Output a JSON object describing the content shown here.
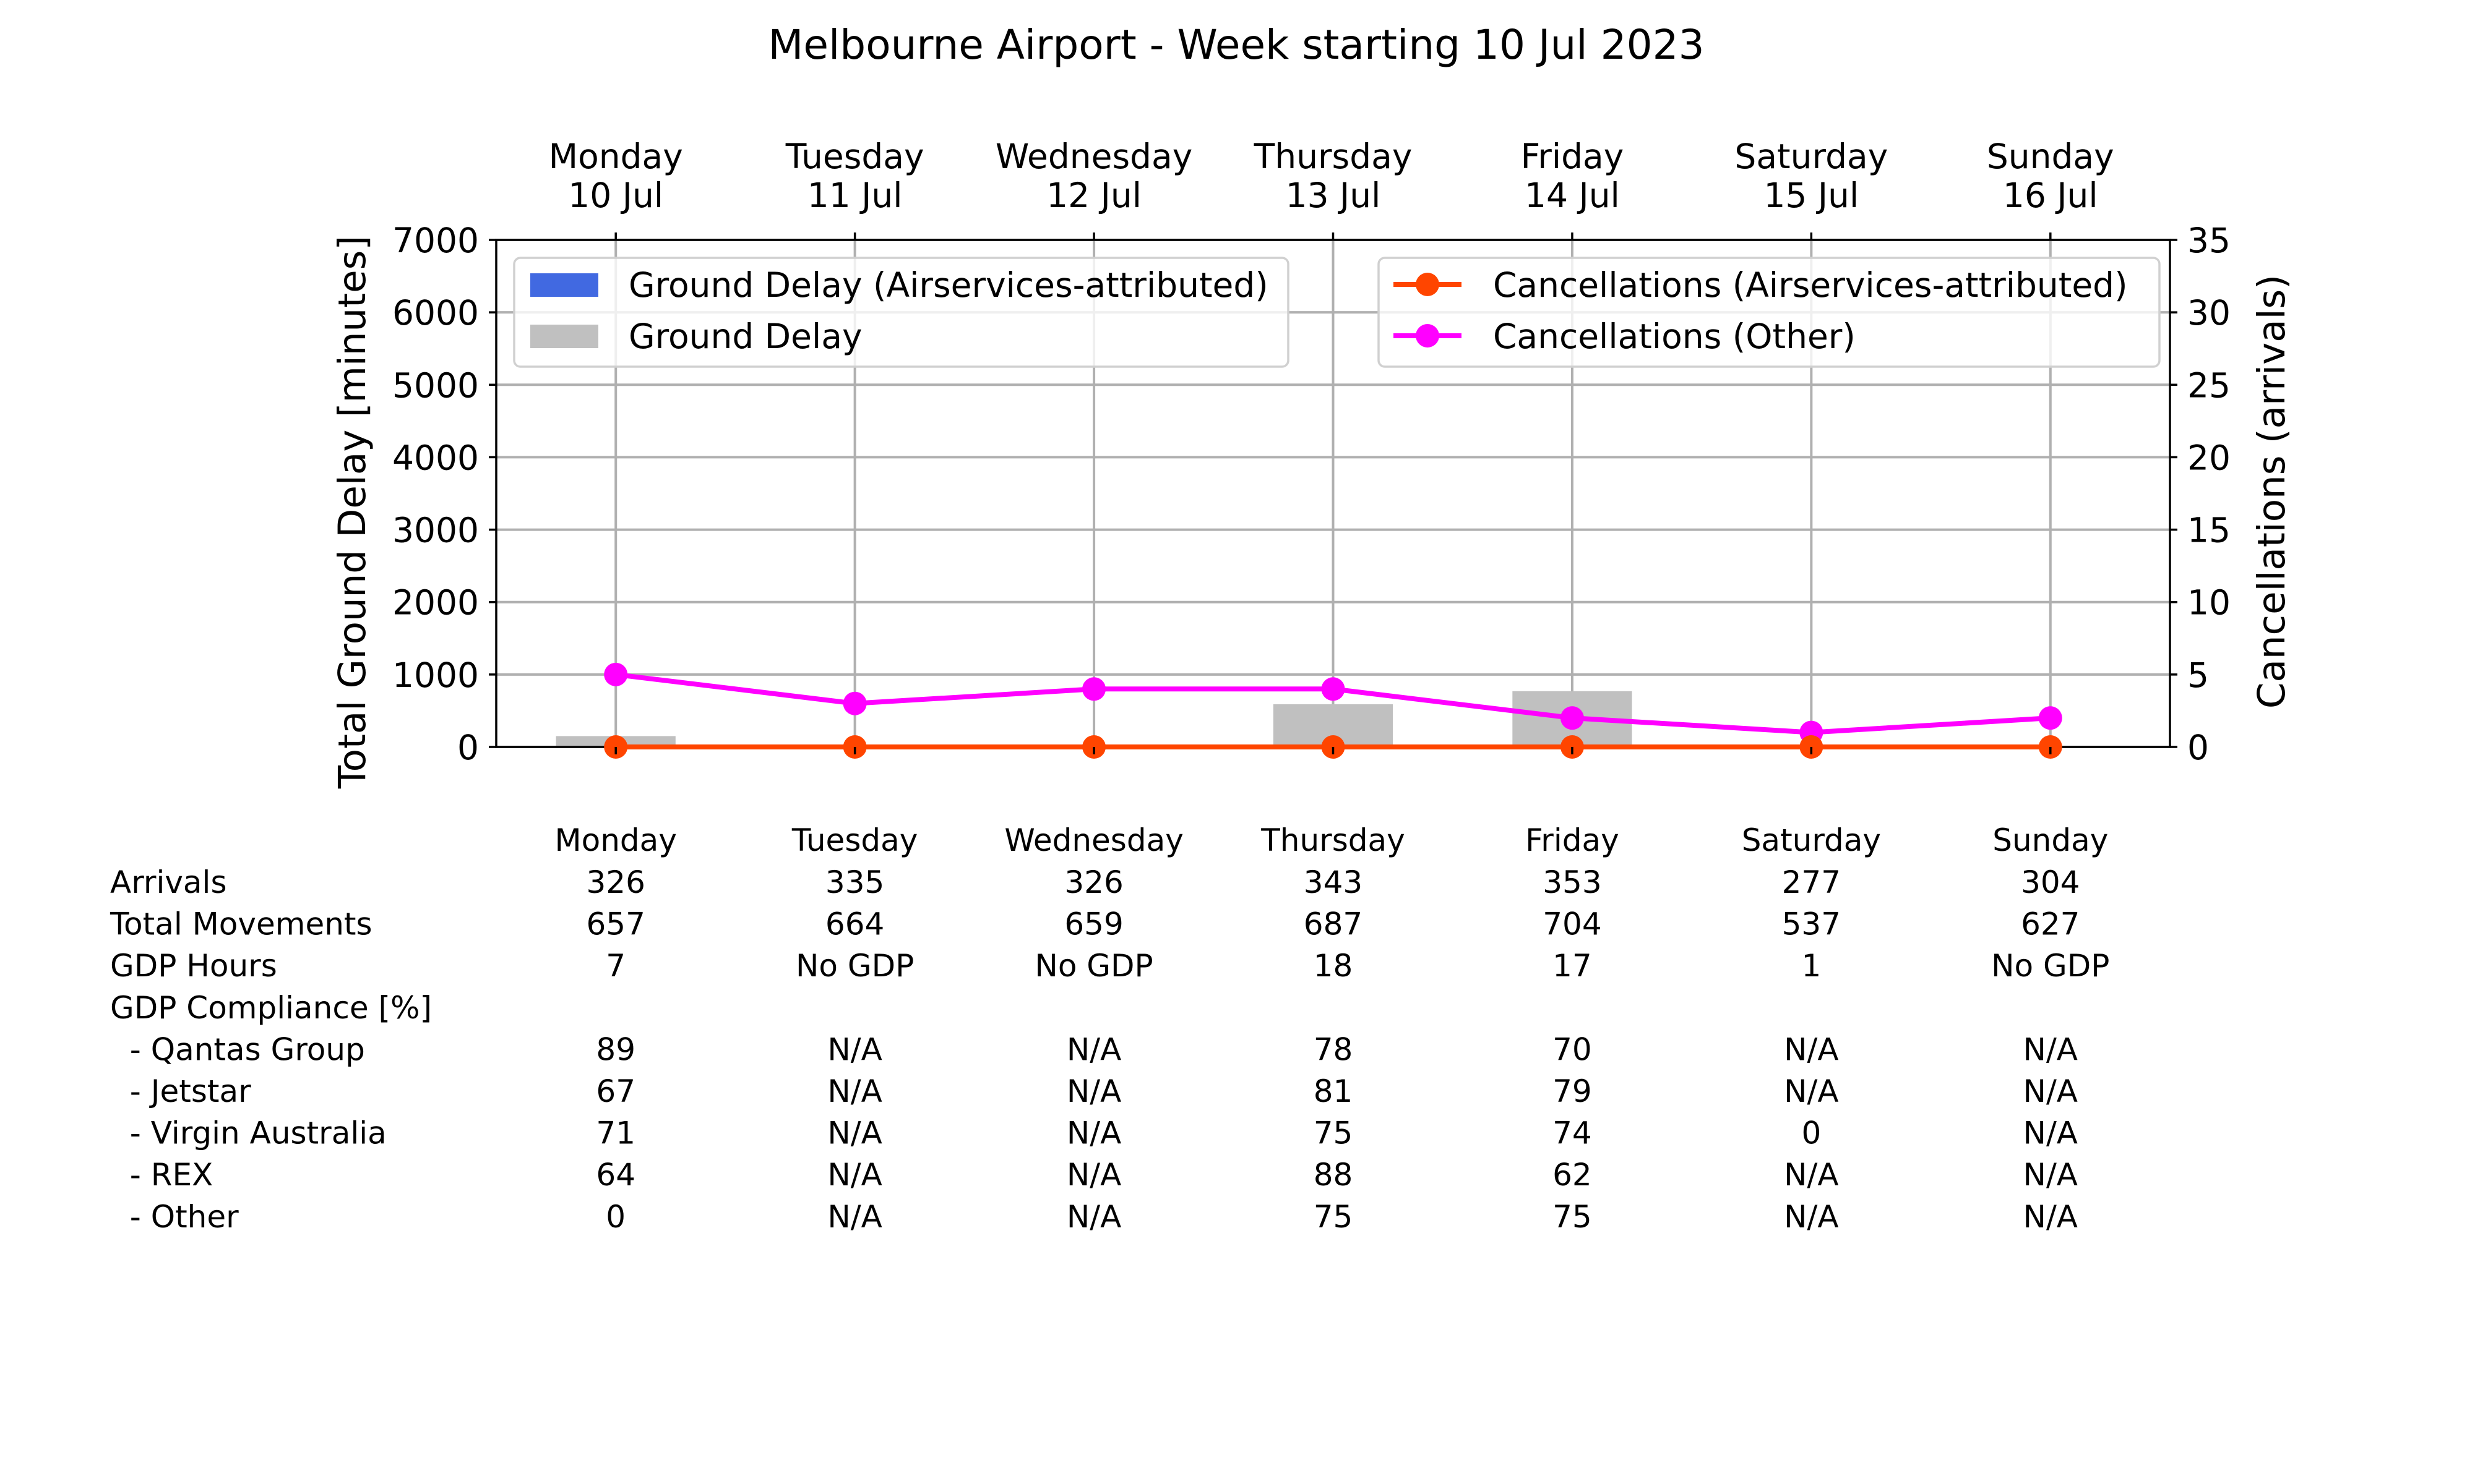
{
  "chart_data": {
    "type": "bar",
    "title": "Melbourne Airport - Week starting 10 Jul 2023",
    "categories": [
      "Monday",
      "Tuesday",
      "Wednesday",
      "Thursday",
      "Friday",
      "Saturday",
      "Sunday"
    ],
    "dates": [
      "10 Jul",
      "11 Jul",
      "12 Jul",
      "13 Jul",
      "14 Jul",
      "15 Jul",
      "16 Jul"
    ],
    "ylabel": "Total Ground Delay [minutes]",
    "ylim": [
      0,
      7000
    ],
    "yticks": [
      "0",
      "1000",
      "2000",
      "3000",
      "4000",
      "5000",
      "6000",
      "7000"
    ],
    "y2label": "Cancellations (arrivals)",
    "y2lim": [
      0,
      35
    ],
    "y2ticks": [
      "0",
      "5",
      "10",
      "15",
      "20",
      "25",
      "30",
      "35"
    ],
    "grid": true,
    "bar_series": [
      {
        "name": "Ground Delay (Airservices-attributed)",
        "color": "#4169e1",
        "values": [
          0,
          0,
          0,
          0,
          0,
          0,
          0
        ]
      },
      {
        "name": "Ground Delay",
        "color": "#c0c0c0",
        "values": [
          150,
          0,
          0,
          590,
          770,
          0,
          0
        ]
      }
    ],
    "line_series": [
      {
        "name": "Cancellations (Airservices-attributed)",
        "color": "#ff4500",
        "values": [
          0,
          0,
          0,
          0,
          0,
          0,
          0
        ]
      },
      {
        "name": "Cancellations (Other)",
        "color": "#ff00ff",
        "values": [
          5,
          3,
          4,
          4,
          2,
          1,
          2
        ]
      }
    ],
    "legend_left_placement": "upper-left",
    "legend_right_placement": "upper-right",
    "table": {
      "header": [
        "Monday",
        "Tuesday",
        "Wednesday",
        "Thursday",
        "Friday",
        "Saturday",
        "Sunday"
      ],
      "rows": [
        {
          "label": "Arrivals",
          "values": [
            "326",
            "335",
            "326",
            "343",
            "353",
            "277",
            "304"
          ]
        },
        {
          "label": "Total Movements",
          "values": [
            "657",
            "664",
            "659",
            "687",
            "704",
            "537",
            "627"
          ]
        },
        {
          "label": "GDP Hours",
          "values": [
            "7",
            "No GDP",
            "No GDP",
            "18",
            "17",
            "1",
            "No GDP"
          ]
        },
        {
          "label": "GDP Compliance [%]",
          "values": [
            "",
            "",
            "",
            "",
            "",
            "",
            ""
          ]
        },
        {
          "label": "  - Qantas Group",
          "values": [
            "89",
            "N/A",
            "N/A",
            "78",
            "70",
            "N/A",
            "N/A"
          ]
        },
        {
          "label": "  - Jetstar",
          "values": [
            "67",
            "N/A",
            "N/A",
            "81",
            "79",
            "N/A",
            "N/A"
          ]
        },
        {
          "label": "  - Virgin Australia",
          "values": [
            "71",
            "N/A",
            "N/A",
            "75",
            "74",
            "0",
            "N/A"
          ]
        },
        {
          "label": "  - REX",
          "values": [
            "64",
            "N/A",
            "N/A",
            "88",
            "62",
            "N/A",
            "N/A"
          ]
        },
        {
          "label": "  - Other",
          "values": [
            "0",
            "N/A",
            "N/A",
            "75",
            "75",
            "N/A",
            "N/A"
          ]
        }
      ]
    }
  }
}
